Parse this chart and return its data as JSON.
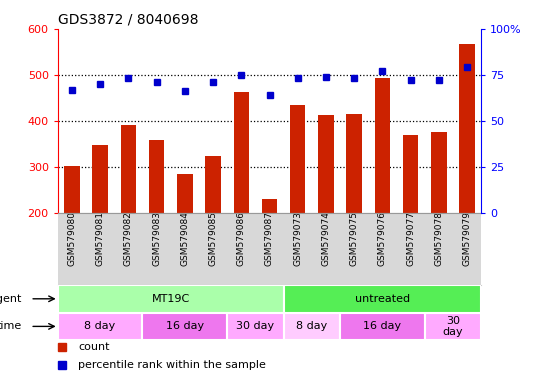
{
  "title": "GDS3872 / 8040698",
  "samples": [
    "GSM579080",
    "GSM579081",
    "GSM579082",
    "GSM579083",
    "GSM579084",
    "GSM579085",
    "GSM579086",
    "GSM579087",
    "GSM579073",
    "GSM579074",
    "GSM579075",
    "GSM579076",
    "GSM579077",
    "GSM579078",
    "GSM579079"
  ],
  "counts": [
    302,
    348,
    390,
    358,
    284,
    324,
    462,
    230,
    435,
    413,
    414,
    492,
    368,
    376,
    568
  ],
  "percentiles": [
    67,
    70,
    73,
    71,
    66,
    71,
    75,
    64,
    73,
    74,
    73,
    77,
    72,
    72,
    79
  ],
  "ylim_left": [
    200,
    600
  ],
  "ylim_right": [
    0,
    100
  ],
  "yticks_left": [
    200,
    300,
    400,
    500,
    600
  ],
  "yticks_right": [
    0,
    25,
    50,
    75,
    100
  ],
  "ytick_right_labels": [
    "0",
    "25",
    "50",
    "75",
    "100%"
  ],
  "bar_color": "#cc2200",
  "dot_color": "#0000cc",
  "bg_color": "#ffffff",
  "label_bg": "#d8d8d8",
  "agent_groups": [
    {
      "label": "MT19C",
      "start": 0,
      "end": 8,
      "color": "#aaffaa"
    },
    {
      "label": "untreated",
      "start": 8,
      "end": 15,
      "color": "#55ee55"
    }
  ],
  "time_groups": [
    {
      "label": "8 day",
      "start": 0,
      "end": 3,
      "color": "#ffaaff"
    },
    {
      "label": "16 day",
      "start": 3,
      "end": 6,
      "color": "#ee77ee"
    },
    {
      "label": "30 day",
      "start": 6,
      "end": 8,
      "color": "#ffaaff"
    },
    {
      "label": "8 day",
      "start": 8,
      "end": 10,
      "color": "#ffccff"
    },
    {
      "label": "16 day",
      "start": 10,
      "end": 13,
      "color": "#ee77ee"
    },
    {
      "label": "30\nday",
      "start": 13,
      "end": 15,
      "color": "#ffaaff"
    }
  ],
  "legend_items": [
    {
      "label": "count",
      "color": "#cc2200"
    },
    {
      "label": "percentile rank within the sample",
      "color": "#0000cc"
    }
  ]
}
